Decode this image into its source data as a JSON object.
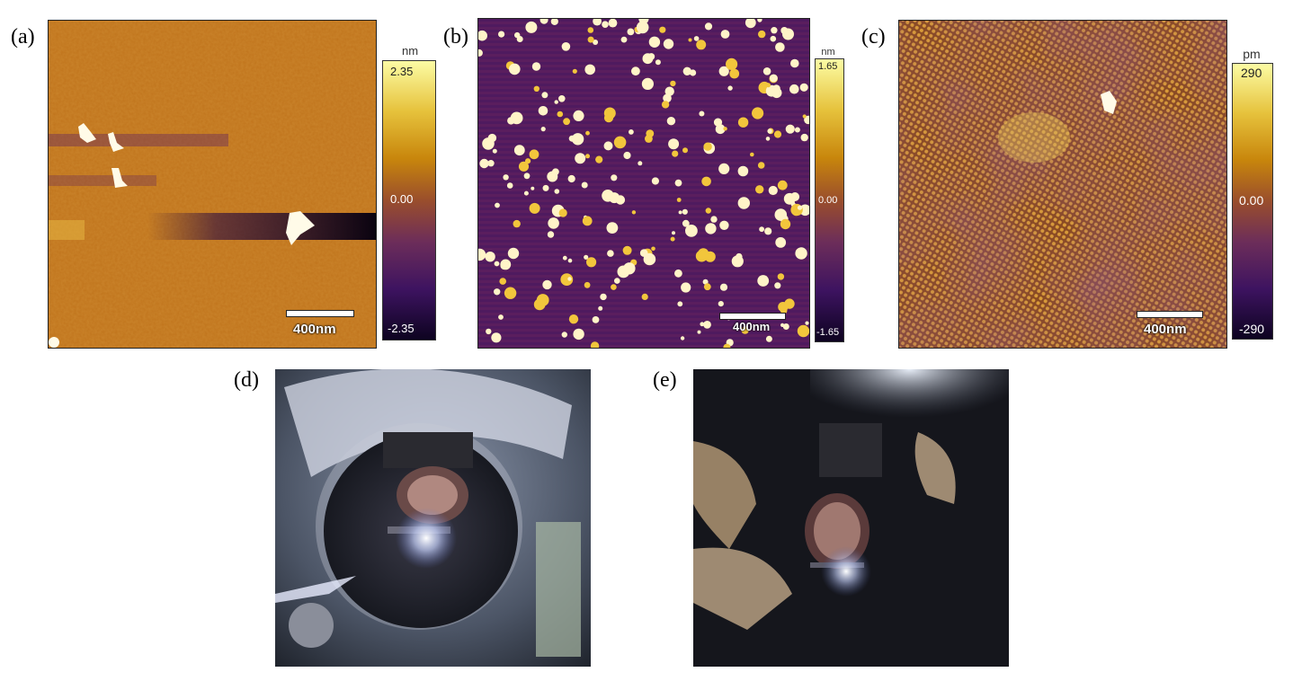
{
  "panels": [
    {
      "label": "(a)",
      "unit": "nm",
      "max": "2.35",
      "zero": "0.00",
      "min": "-2.35",
      "scale": "400nm"
    },
    {
      "label": "(b)",
      "unit": "nm",
      "max": "1.65",
      "zero": "0.00",
      "min": "-1.65",
      "scale": "400nm"
    },
    {
      "label": "(c)",
      "unit": "pm",
      "max": "290",
      "zero": "0.00",
      "min": "-290",
      "scale": "400nm"
    },
    {
      "label": "(d)"
    },
    {
      "label": "(e)"
    }
  ],
  "colors": {
    "afm_background_a": "#c0741c",
    "afm_background_b": "#5a1e5e",
    "afm_background_c": "#b06818",
    "particle": "#fffbe8"
  }
}
